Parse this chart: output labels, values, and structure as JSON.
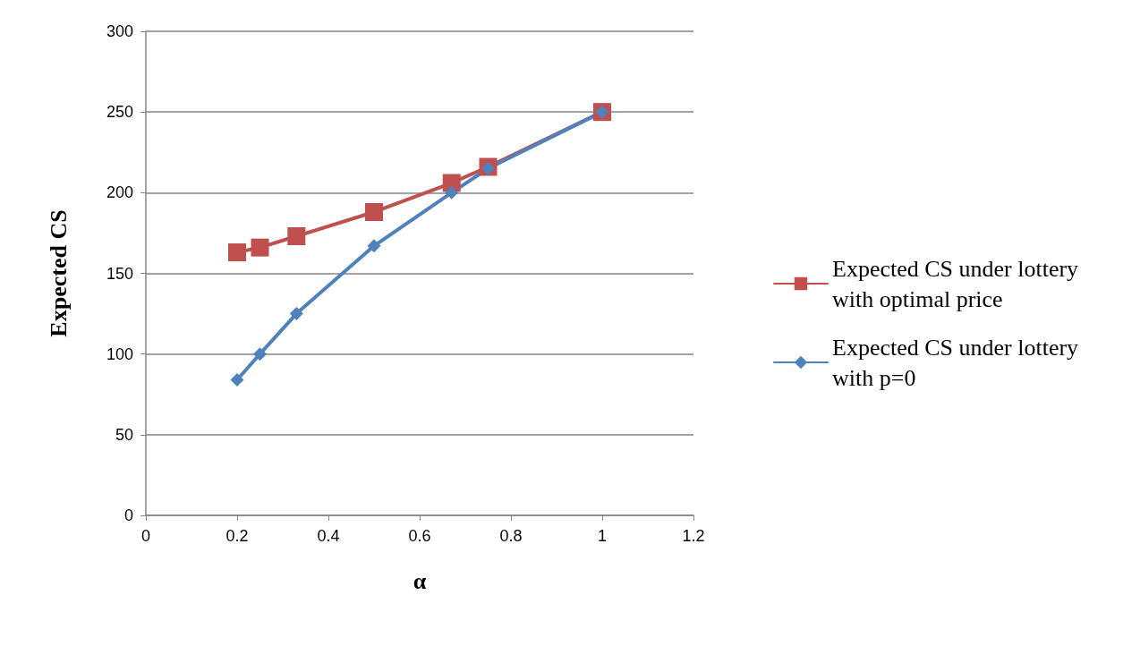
{
  "chart_data": {
    "type": "line",
    "xlabel": "α",
    "ylabel": "Expected CS",
    "x": [
      0.2,
      0.25,
      0.33,
      0.5,
      0.67,
      0.75,
      1
    ],
    "series": [
      {
        "name": "Expected CS under lottery with optimal price",
        "color": "#c0504d",
        "marker": "square",
        "values": [
          163,
          166,
          173,
          188,
          206,
          216,
          250
        ]
      },
      {
        "name": "Expected CS under lottery with p=0",
        "color": "#4f81bd",
        "marker": "diamond",
        "values": [
          84,
          100,
          125,
          167,
          200,
          215,
          250
        ]
      }
    ],
    "xlim": [
      0,
      1.2
    ],
    "xticks": [
      0,
      0.2,
      0.4,
      0.6,
      0.8,
      1,
      1.2
    ],
    "ylim": [
      0,
      300
    ],
    "yticks": [
      0,
      50,
      100,
      150,
      200,
      250,
      300
    ],
    "grid": "y",
    "legend": "right"
  }
}
